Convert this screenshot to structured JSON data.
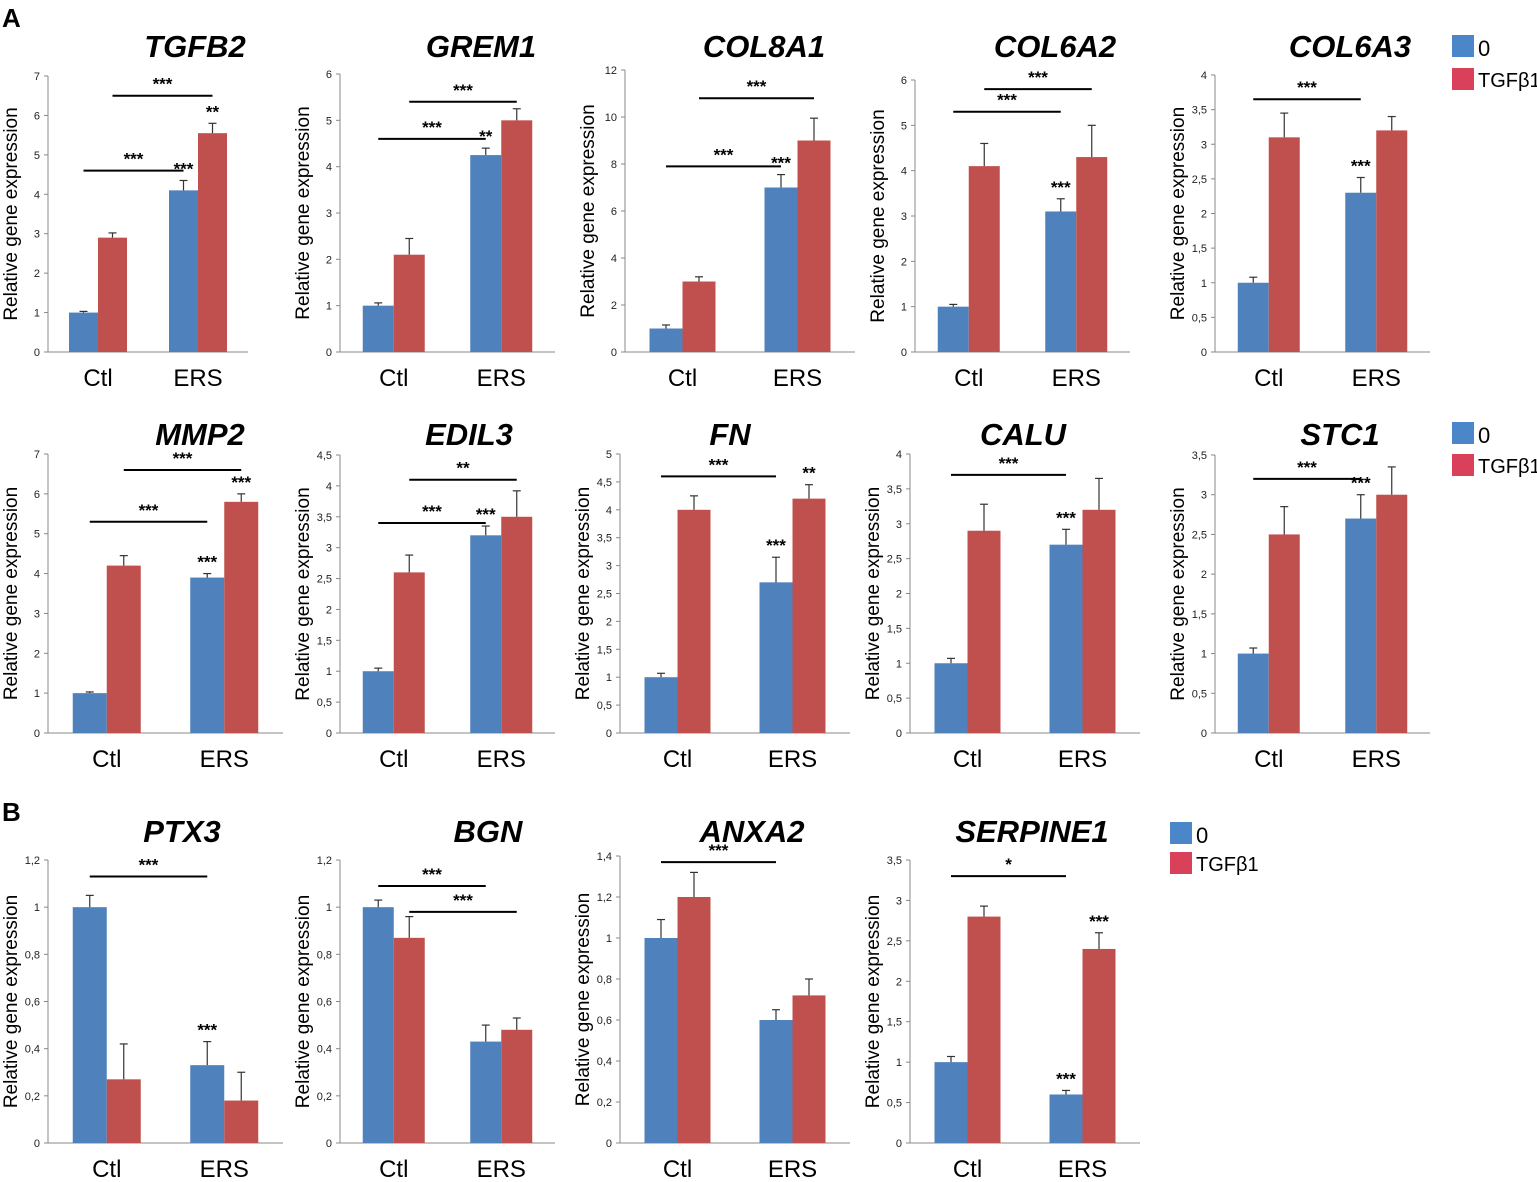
{
  "panel_labels": [
    "A",
    "B"
  ],
  "legend": {
    "series": [
      "0",
      "TGFβ1"
    ]
  },
  "colors": {
    "series0": "#4f81bd",
    "series1": "#c0504d",
    "legend0": "#4a86c8",
    "legend1": "#d9415a"
  },
  "chart_data": [
    {
      "type": "bar",
      "title": "TGFB2",
      "ylabel": "Relative gene expression",
      "categories": [
        "Ctl",
        "ERS"
      ],
      "ylim": [
        0,
        7
      ],
      "ticks": [
        "0",
        "1",
        "2",
        "3",
        "4",
        "5",
        "6",
        "7"
      ],
      "series": [
        {
          "name": "0",
          "values": [
            1.0,
            4.1
          ],
          "errors": [
            0.03,
            0.25
          ]
        },
        {
          "name": "TGFβ1",
          "values": [
            2.9,
            5.55
          ],
          "errors": [
            0.12,
            0.25
          ]
        }
      ],
      "bar_labels": [
        [
          null,
          "***"
        ],
        [
          null,
          "**"
        ]
      ],
      "brackets": [
        {
          "from": [
            0,
            0
          ],
          "to": [
            1,
            0
          ],
          "y": 4.6,
          "label": "***"
        },
        {
          "from": [
            0,
            1
          ],
          "to": [
            1,
            1
          ],
          "y": 6.5,
          "label": "***"
        }
      ]
    },
    {
      "type": "bar",
      "title": "GREM1",
      "ylabel": "Relative gene expression",
      "categories": [
        "Ctl",
        "ERS"
      ],
      "ylim": [
        0,
        6
      ],
      "ticks": [
        "0",
        "1",
        "2",
        "3",
        "4",
        "5",
        "6"
      ],
      "series": [
        {
          "name": "0",
          "values": [
            1.0,
            4.25
          ],
          "errors": [
            0.06,
            0.15
          ]
        },
        {
          "name": "TGFβ1",
          "values": [
            2.1,
            5.0
          ],
          "errors": [
            0.35,
            0.25
          ]
        }
      ],
      "bar_labels": [
        [
          null,
          "**"
        ],
        [
          null,
          null
        ]
      ],
      "brackets": [
        {
          "from": [
            0,
            0
          ],
          "to": [
            1,
            0
          ],
          "y": 4.6,
          "label": "***"
        },
        {
          "from": [
            0,
            1
          ],
          "to": [
            1,
            1
          ],
          "y": 5.4,
          "label": "***"
        }
      ]
    },
    {
      "type": "bar",
      "title": "COL8A1",
      "ylabel": "Relative gene expression",
      "categories": [
        "Ctl",
        "ERS"
      ],
      "ylim": [
        0,
        12
      ],
      "ticks": [
        "0",
        "2",
        "4",
        "6",
        "8",
        "10",
        "12"
      ],
      "series": [
        {
          "name": "0",
          "values": [
            1.0,
            7.0
          ],
          "errors": [
            0.15,
            0.55
          ]
        },
        {
          "name": "TGFβ1",
          "values": [
            3.0,
            9.0
          ],
          "errors": [
            0.2,
            0.95
          ]
        }
      ],
      "bar_labels": [
        [
          null,
          "***"
        ],
        [
          null,
          null
        ]
      ],
      "brackets": [
        {
          "from": [
            0,
            0
          ],
          "to": [
            1,
            0
          ],
          "y": 7.9,
          "label": "***"
        },
        {
          "from": [
            0,
            1
          ],
          "to": [
            1,
            1
          ],
          "y": 10.8,
          "label": "***"
        }
      ]
    },
    {
      "type": "bar",
      "title": "COL6A2",
      "ylabel": "Relative gene expression",
      "categories": [
        "Ctl",
        "ERS"
      ],
      "ylim": [
        0,
        6
      ],
      "ticks": [
        "0",
        "1",
        "2",
        "3",
        "4",
        "5",
        "6"
      ],
      "series": [
        {
          "name": "0",
          "values": [
            1.0,
            3.1
          ],
          "errors": [
            0.05,
            0.28
          ]
        },
        {
          "name": "TGFβ1",
          "values": [
            4.1,
            4.3
          ],
          "errors": [
            0.5,
            0.7
          ]
        }
      ],
      "bar_labels": [
        [
          null,
          "***"
        ],
        [
          null,
          null
        ]
      ],
      "brackets": [
        {
          "from": [
            0,
            0
          ],
          "to": [
            1,
            0
          ],
          "y": 5.3,
          "label": "***"
        },
        {
          "from": [
            0,
            1
          ],
          "to": [
            1,
            1
          ],
          "y": 5.8,
          "label": "***"
        }
      ]
    },
    {
      "type": "bar",
      "title": "COL6A3",
      "ylabel": "Relative gene expression",
      "categories": [
        "Ctl",
        "ERS"
      ],
      "ylim": [
        0,
        4
      ],
      "ticks": [
        "0",
        "0,5",
        "1",
        "1,5",
        "2",
        "2,5",
        "3",
        "3,5",
        "4"
      ],
      "series": [
        {
          "name": "0",
          "values": [
            1.0,
            2.3
          ],
          "errors": [
            0.08,
            0.22
          ]
        },
        {
          "name": "TGFβ1",
          "values": [
            3.1,
            3.2
          ],
          "errors": [
            0.35,
            0.2
          ]
        }
      ],
      "bar_labels": [
        [
          null,
          "***"
        ],
        [
          null,
          null
        ]
      ],
      "brackets": [
        {
          "from": [
            0,
            0
          ],
          "to": [
            1,
            0
          ],
          "y": 3.65,
          "label": "***"
        }
      ]
    },
    {
      "type": "bar",
      "title": "MMP2",
      "ylabel": "Relative gene expression",
      "categories": [
        "Ctl",
        "ERS"
      ],
      "ylim": [
        0,
        7
      ],
      "ticks": [
        "0",
        "1",
        "2",
        "3",
        "4",
        "5",
        "6",
        "7"
      ],
      "series": [
        {
          "name": "0",
          "values": [
            1.0,
            3.9
          ],
          "errors": [
            0.03,
            0.1
          ]
        },
        {
          "name": "TGFβ1",
          "values": [
            4.2,
            5.8
          ],
          "errors": [
            0.25,
            0.2
          ]
        }
      ],
      "bar_labels": [
        [
          null,
          "***"
        ],
        [
          null,
          "***"
        ]
      ],
      "brackets": [
        {
          "from": [
            0,
            0
          ],
          "to": [
            1,
            0
          ],
          "y": 5.3,
          "label": "***"
        },
        {
          "from": [
            0,
            1
          ],
          "to": [
            1,
            1
          ],
          "y": 6.6,
          "label": "***"
        }
      ]
    },
    {
      "type": "bar",
      "title": "EDIL3",
      "ylabel": "Relative gene expression",
      "categories": [
        "Ctl",
        "ERS"
      ],
      "ylim": [
        0,
        4.5
      ],
      "ticks": [
        "0",
        "0,5",
        "1",
        "1,5",
        "2",
        "2,5",
        "3",
        "3,5",
        "4",
        "4,5"
      ],
      "series": [
        {
          "name": "0",
          "values": [
            1.0,
            3.2
          ],
          "errors": [
            0.05,
            0.15
          ]
        },
        {
          "name": "TGFβ1",
          "values": [
            2.6,
            3.5
          ],
          "errors": [
            0.28,
            0.42
          ]
        }
      ],
      "bar_labels": [
        [
          null,
          "***"
        ],
        [
          null,
          null
        ]
      ],
      "brackets": [
        {
          "from": [
            0,
            0
          ],
          "to": [
            1,
            0
          ],
          "y": 3.4,
          "label": "***"
        },
        {
          "from": [
            0,
            1
          ],
          "to": [
            1,
            1
          ],
          "y": 4.1,
          "label": "**"
        }
      ]
    },
    {
      "type": "bar",
      "title": "FN",
      "ylabel": "Relative gene expression",
      "categories": [
        "Ctl",
        "ERS"
      ],
      "ylim": [
        0,
        5
      ],
      "ticks": [
        "0",
        "0,5",
        "1",
        "1,5",
        "2",
        "2,5",
        "3",
        "3,5",
        "4",
        "4,5",
        "5"
      ],
      "series": [
        {
          "name": "0",
          "values": [
            1.0,
            2.7
          ],
          "errors": [
            0.07,
            0.45
          ]
        },
        {
          "name": "TGFβ1",
          "values": [
            4.0,
            4.2
          ],
          "errors": [
            0.25,
            0.25
          ]
        }
      ],
      "bar_labels": [
        [
          null,
          "***"
        ],
        [
          null,
          "**"
        ]
      ],
      "brackets": [
        {
          "from": [
            0,
            0
          ],
          "to": [
            1,
            0
          ],
          "y": 4.6,
          "label": "***"
        }
      ]
    },
    {
      "type": "bar",
      "title": "CALU",
      "ylabel": "Relative gene expression",
      "categories": [
        "Ctl",
        "ERS"
      ],
      "ylim": [
        0,
        4
      ],
      "ticks": [
        "0",
        "0,5",
        "1",
        "1,5",
        "2",
        "2,5",
        "3",
        "3,5",
        "4"
      ],
      "series": [
        {
          "name": "0",
          "values": [
            1.0,
            2.7
          ],
          "errors": [
            0.07,
            0.22
          ]
        },
        {
          "name": "TGFβ1",
          "values": [
            2.9,
            3.2
          ],
          "errors": [
            0.38,
            0.45
          ]
        }
      ],
      "bar_labels": [
        [
          null,
          "***"
        ],
        [
          null,
          null
        ]
      ],
      "brackets": [
        {
          "from": [
            0,
            0
          ],
          "to": [
            1,
            0
          ],
          "y": 3.7,
          "label": "***"
        }
      ]
    },
    {
      "type": "bar",
      "title": "STC1",
      "ylabel": "Relative gene expression",
      "categories": [
        "Ctl",
        "ERS"
      ],
      "ylim": [
        0,
        3.5
      ],
      "ticks": [
        "0",
        "0,5",
        "1",
        "1,5",
        "2",
        "2,5",
        "3",
        "3,5"
      ],
      "series": [
        {
          "name": "0",
          "values": [
            1.0,
            2.7
          ],
          "errors": [
            0.07,
            0.3
          ]
        },
        {
          "name": "TGFβ1",
          "values": [
            2.5,
            3.0
          ],
          "errors": [
            0.35,
            0.35
          ]
        }
      ],
      "bar_labels": [
        [
          null,
          "***"
        ],
        [
          null,
          null
        ]
      ],
      "brackets": [
        {
          "from": [
            0,
            0
          ],
          "to": [
            1,
            0
          ],
          "y": 3.2,
          "label": "***"
        }
      ]
    },
    {
      "type": "bar",
      "title": "PTX3",
      "ylabel": "Relative gene expression",
      "categories": [
        "Ctl",
        "ERS"
      ],
      "ylim": [
        0,
        1.2
      ],
      "ticks": [
        "0",
        "0,2",
        "0,4",
        "0,6",
        "0,8",
        "1",
        "1,2"
      ],
      "series": [
        {
          "name": "0",
          "values": [
            1.0,
            0.33
          ],
          "errors": [
            0.05,
            0.1
          ]
        },
        {
          "name": "TGFβ1",
          "values": [
            0.27,
            0.18
          ],
          "errors": [
            0.15,
            0.12
          ]
        }
      ],
      "bar_labels": [
        [
          null,
          "***"
        ],
        [
          null,
          null
        ]
      ],
      "brackets": [
        {
          "from": [
            0,
            0
          ],
          "to": [
            1,
            0
          ],
          "y": 1.13,
          "label": "***"
        }
      ]
    },
    {
      "type": "bar",
      "title": "BGN",
      "ylabel": "Relative gene expression",
      "categories": [
        "Ctl",
        "ERS"
      ],
      "ylim": [
        0,
        1.2
      ],
      "ticks": [
        "0",
        "0,2",
        "0,4",
        "0,6",
        "0,8",
        "1",
        "1,2"
      ],
      "series": [
        {
          "name": "0",
          "values": [
            1.0,
            0.43
          ],
          "errors": [
            0.03,
            0.07
          ]
        },
        {
          "name": "TGFβ1",
          "values": [
            0.87,
            0.48
          ],
          "errors": [
            0.09,
            0.05
          ]
        }
      ],
      "bar_labels": [
        [
          null,
          null
        ],
        [
          null,
          null
        ]
      ],
      "brackets": [
        {
          "from": [
            0,
            0
          ],
          "to": [
            1,
            0
          ],
          "y": 1.09,
          "label": "***"
        },
        {
          "from": [
            0,
            1
          ],
          "to": [
            1,
            1
          ],
          "y": 0.98,
          "label": "***"
        }
      ]
    },
    {
      "type": "bar",
      "title": "ANXA2",
      "ylabel": "Relative gene expression",
      "categories": [
        "Ctl",
        "ERS"
      ],
      "ylim": [
        0,
        1.4
      ],
      "ticks": [
        "0",
        "0,2",
        "0,4",
        "0,6",
        "0,8",
        "1",
        "1,2",
        "1,4"
      ],
      "series": [
        {
          "name": "0",
          "values": [
            1.0,
            0.6
          ],
          "errors": [
            0.09,
            0.05
          ]
        },
        {
          "name": "TGFβ1",
          "values": [
            1.2,
            0.72
          ],
          "errors": [
            0.12,
            0.08
          ]
        }
      ],
      "bar_labels": [
        [
          null,
          null
        ],
        [
          null,
          null
        ]
      ],
      "brackets": [
        {
          "from": [
            0,
            0
          ],
          "to": [
            1,
            0
          ],
          "y": 1.37,
          "label": "***"
        }
      ]
    },
    {
      "type": "bar",
      "title": "SERPINE1",
      "ylabel": "Relative gene expression",
      "categories": [
        "Ctl",
        "ERS"
      ],
      "ylim": [
        0,
        3.5
      ],
      "ticks": [
        "0",
        "0,5",
        "1",
        "1,5",
        "2",
        "2,5",
        "3",
        "3,5"
      ],
      "series": [
        {
          "name": "0",
          "values": [
            1.0,
            0.6
          ],
          "errors": [
            0.07,
            0.05
          ]
        },
        {
          "name": "TGFβ1",
          "values": [
            2.8,
            2.4
          ],
          "errors": [
            0.13,
            0.2
          ]
        }
      ],
      "bar_labels": [
        [
          null,
          "***"
        ],
        [
          null,
          "***"
        ]
      ],
      "brackets": [
        {
          "from": [
            0,
            0
          ],
          "to": [
            1,
            0
          ],
          "y": 3.3,
          "label": "*"
        }
      ]
    }
  ]
}
